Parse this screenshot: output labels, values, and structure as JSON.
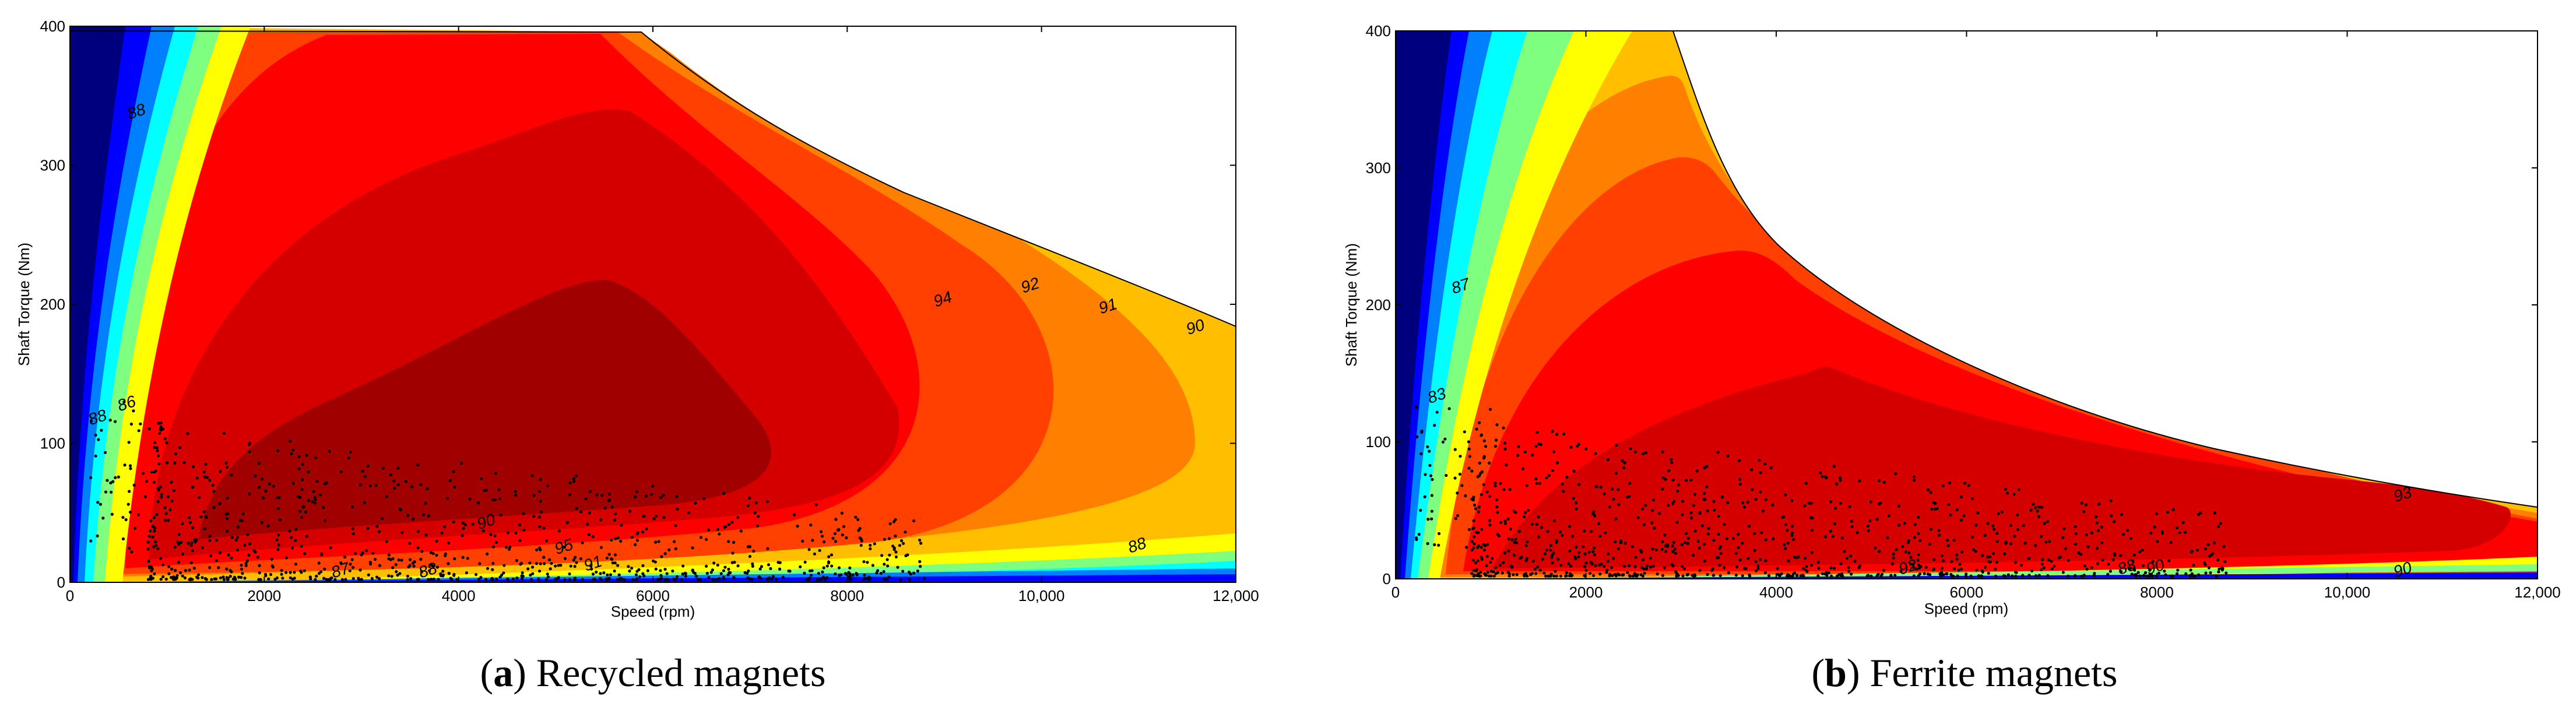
{
  "colors": {
    "efficiency_colormap": [
      "#00007f",
      "#0000ff",
      "#007fff",
      "#00ffff",
      "#7fff7f",
      "#ffff00",
      "#ffbf00",
      "#ff7f00",
      "#ff4000",
      "#ff0000",
      "#d40000",
      "#a00000"
    ],
    "operating_points": "#000000"
  },
  "captions": [
    {
      "letter": "a",
      "text": "Recycled magnets"
    },
    {
      "letter": "b",
      "text": "Ferrite magnets"
    }
  ],
  "chart_data": [
    {
      "type": "contour",
      "xlabel": "Speed  (rpm)",
      "ylabel": "Shaft Torque  (Nm)",
      "xlim": [
        0,
        12000
      ],
      "ylim": [
        0,
        400
      ],
      "xticks": [
        "0",
        "2000",
        "4000",
        "6000",
        "8000",
        "10,000",
        "12,000"
      ],
      "yticks": [
        "0",
        "100",
        "200",
        "300",
        "400"
      ],
      "grid": false,
      "contour_labels": [
        {
          "text": "88",
          "x": 700,
          "y": 335
        },
        {
          "text": "88",
          "x": 300,
          "y": 115
        },
        {
          "text": "86",
          "x": 600,
          "y": 125
        },
        {
          "text": "94",
          "x": 9000,
          "y": 200
        },
        {
          "text": "92",
          "x": 9900,
          "y": 210
        },
        {
          "text": "91",
          "x": 10700,
          "y": 195
        },
        {
          "text": "90",
          "x": 11600,
          "y": 180
        },
        {
          "text": "88",
          "x": 11000,
          "y": 23
        },
        {
          "text": "90",
          "x": 4300,
          "y": 40
        },
        {
          "text": "95",
          "x": 5100,
          "y": 22
        },
        {
          "text": "91",
          "x": 5400,
          "y": 10
        },
        {
          "text": "87",
          "x": 2800,
          "y": 5
        },
        {
          "text": "88",
          "x": 3700,
          "y": 5
        }
      ],
      "torque_envelope": {
        "x": [
          0,
          5000,
          6000,
          8000,
          10000,
          12000
        ],
        "y": [
          400,
          395,
          340,
          270,
          210,
          170
        ]
      }
    },
    {
      "type": "contour",
      "xlabel": "Speed  (rpm)",
      "ylabel": "Shaft Torque  (Nm)",
      "xlim": [
        0,
        12000
      ],
      "ylim": [
        0,
        400
      ],
      "xticks": [
        "0",
        "2000",
        "4000",
        "6000",
        "8000",
        "10,000",
        "12,000"
      ],
      "yticks": [
        "0",
        "100",
        "200",
        "300",
        "400"
      ],
      "grid": false,
      "contour_labels": [
        {
          "text": "87",
          "x": 700,
          "y": 210
        },
        {
          "text": "83",
          "x": 450,
          "y": 130
        },
        {
          "text": "93",
          "x": 10600,
          "y": 58
        },
        {
          "text": "90",
          "x": 8000,
          "y": 5
        },
        {
          "text": "90",
          "x": 10600,
          "y": 3
        },
        {
          "text": "92",
          "x": 5400,
          "y": 5
        },
        {
          "text": "88",
          "x": 7700,
          "y": 5
        }
      ],
      "torque_envelope": {
        "x": [
          0,
          2900,
          3200,
          4000,
          5000,
          6000,
          7000,
          8000,
          9000,
          10000,
          11000,
          12000
        ],
        "y": [
          400,
          400,
          330,
          235,
          175,
          130,
          105,
          88,
          75,
          63,
          55,
          48
        ]
      }
    }
  ]
}
